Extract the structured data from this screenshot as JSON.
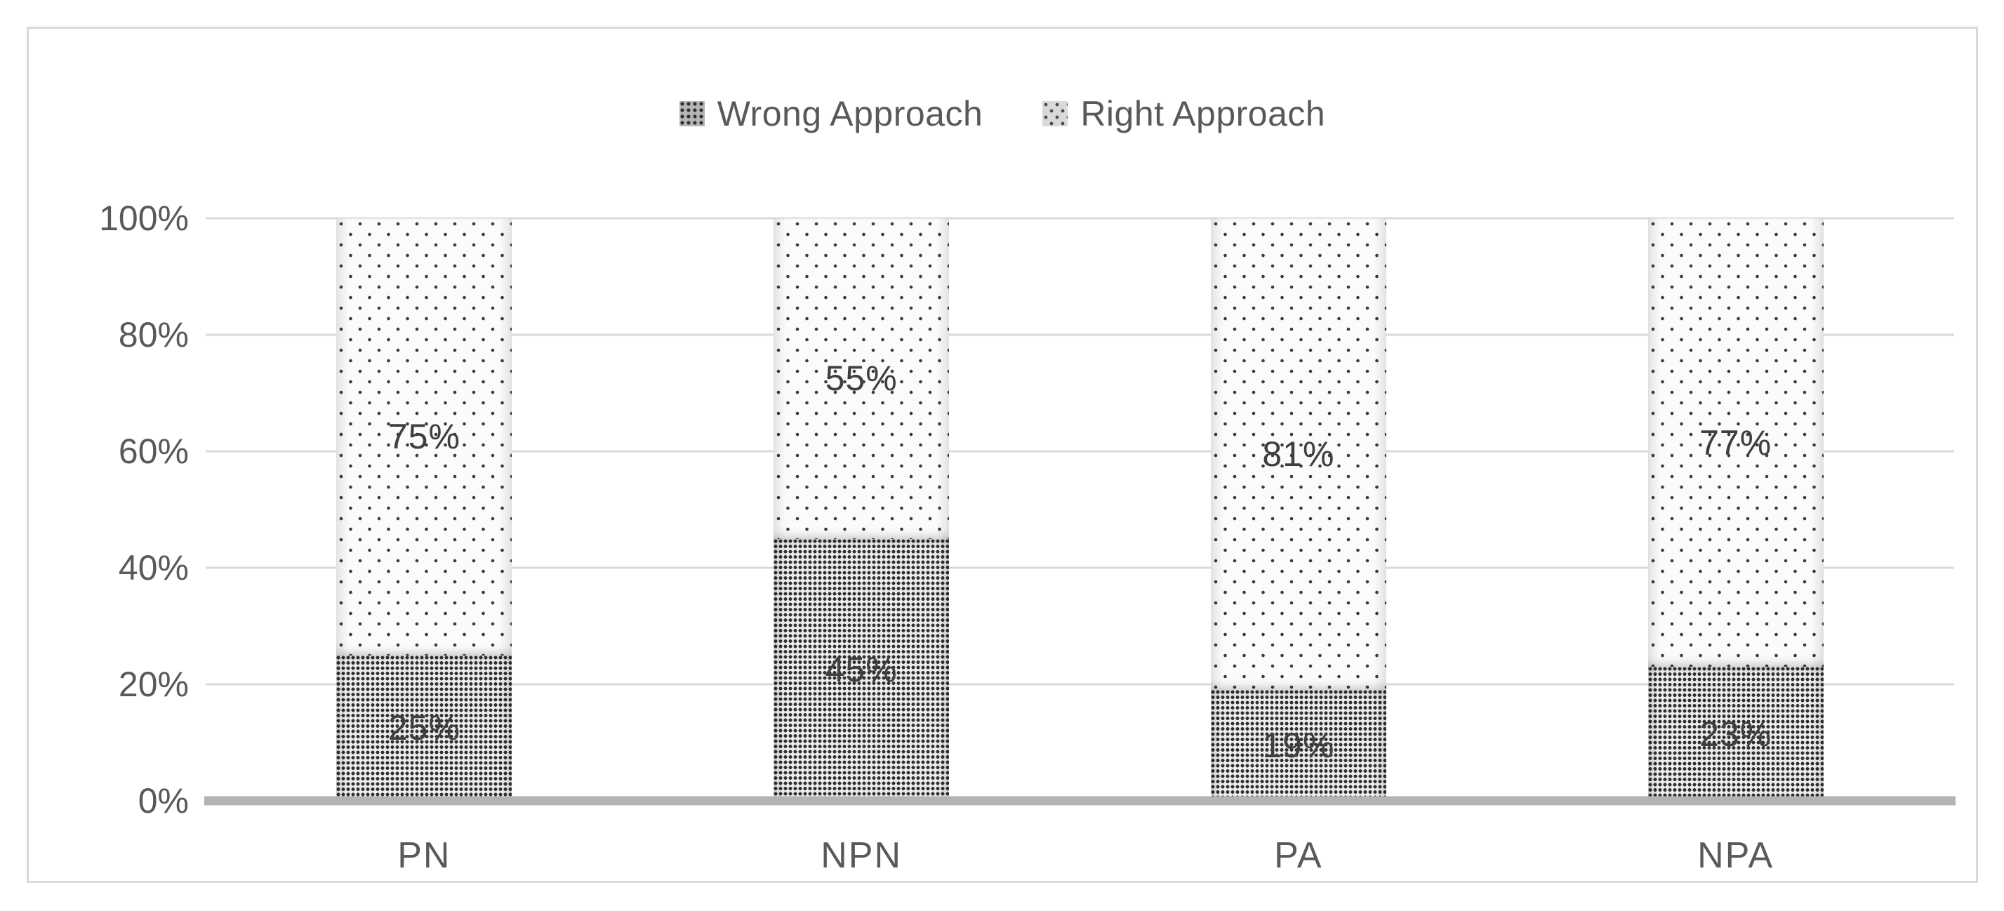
{
  "chart_data": {
    "type": "bar",
    "subtype": "stacked-100-percent",
    "title": "",
    "categories": [
      "PN",
      "NPN",
      "PA",
      "NPA"
    ],
    "series": [
      {
        "name": "Wrong Approach",
        "values": [
          25,
          45,
          19,
          23
        ],
        "data_labels": [
          "25%",
          "45%",
          "19%",
          "23%"
        ],
        "pattern": "dense-dark-dots",
        "swatch_icon": "dotted-square-dark"
      },
      {
        "name": "Right Approach",
        "values": [
          75,
          55,
          81,
          77
        ],
        "data_labels": [
          "75%",
          "55%",
          "81%",
          "77%"
        ],
        "pattern": "sparse-light-dots",
        "swatch_icon": "dotted-square-light"
      }
    ],
    "y_axis": {
      "min": 0,
      "max": 100,
      "tick_values": [
        0,
        20,
        40,
        60,
        80,
        100
      ],
      "tick_labels": [
        "0%",
        "20%",
        "40%",
        "60%",
        "80%",
        "100%"
      ]
    },
    "legend_position": "top-center",
    "grid": "horizontal"
  },
  "colors": {
    "background": "#ffffff",
    "frame_border": "#d9d9d9",
    "gridline": "#d9d9d9",
    "axis_line": "#b3b3b3",
    "axis_text": "#595959",
    "legend_text": "#595959",
    "data_label_text": "#3f3f3f",
    "pattern_dot": "#303030"
  }
}
